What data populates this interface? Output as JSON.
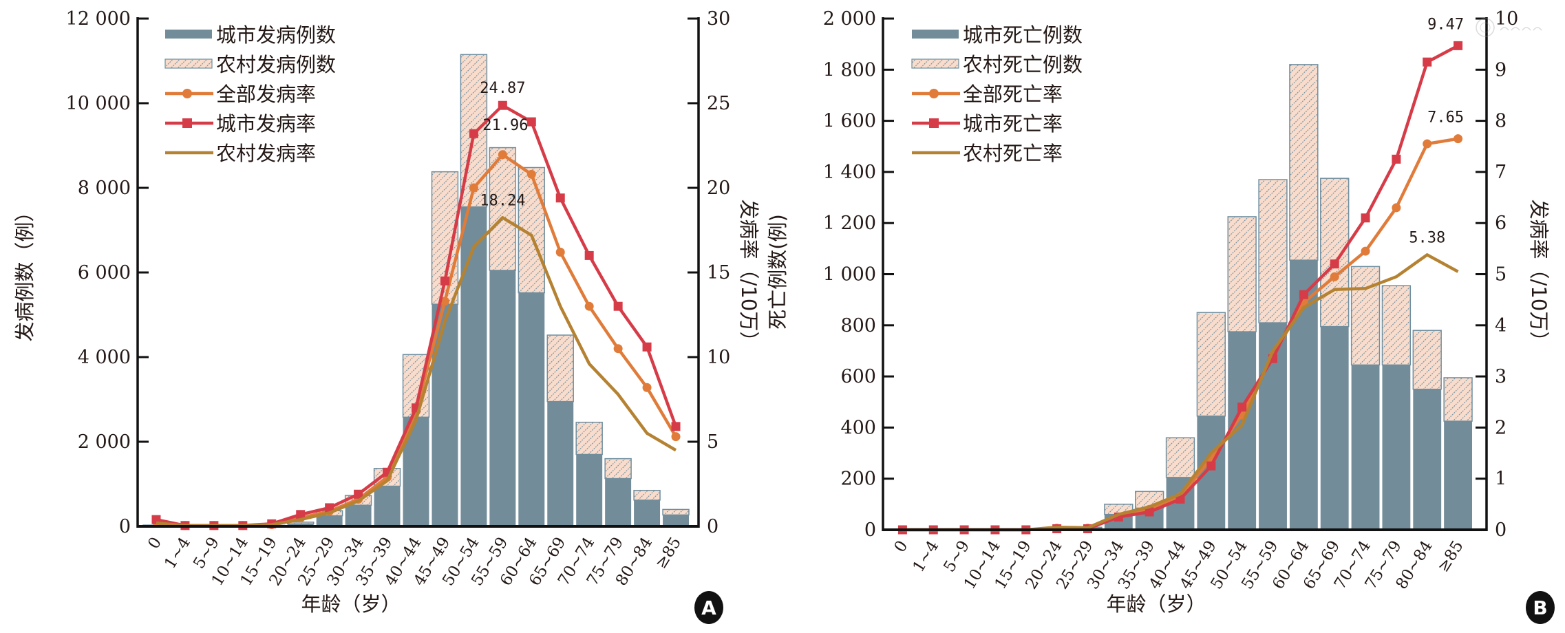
{
  "colors": {
    "urban_bar": "#728c99",
    "rural_bar_fill": "#f9dccb",
    "rural_bar_hatch": "#6f8fa0",
    "overall_line": "#e07b39",
    "urban_line": "#d63c48",
    "rural_line": "#b58232",
    "axis": "#111111",
    "text": "#231815"
  },
  "chart_data": [
    {
      "panel": "A",
      "type": "bar+line",
      "xlabel": "年龄（岁）",
      "ylabel_left": "发病例数（例）",
      "ylabel_right": "发病率（/10万）",
      "ylim_left": [
        0,
        12000
      ],
      "ylim_right": [
        0,
        30
      ],
      "yticks_left": [
        "0",
        "2 000",
        "4 000",
        "6 000",
        "8 000",
        "10 000",
        "12 000"
      ],
      "yticks_left_values": [
        0,
        2000,
        4000,
        6000,
        8000,
        10000,
        12000
      ],
      "yticks_right": [
        "0",
        "5",
        "10",
        "15",
        "20",
        "25",
        "30"
      ],
      "yticks_right_values": [
        0,
        5,
        10,
        15,
        20,
        25,
        30
      ],
      "categories": [
        "0",
        "1~4",
        "5~9",
        "10~14",
        "15~19",
        "20~24",
        "25~29",
        "30~34",
        "35~39",
        "40~44",
        "45~49",
        "50~54",
        "55~59",
        "60~64",
        "65~69",
        "70~74",
        "75~79",
        "80~84",
        "≥85"
      ],
      "legend": [
        "城市发病例数",
        "农村发病例数",
        "全部发病率",
        "城市发病率",
        "农村发病率"
      ],
      "legend_position": "top-left",
      "bar_series": [
        {
          "name": "城市发病例数",
          "values": [
            20,
            5,
            5,
            5,
            15,
            60,
            250,
            500,
            950,
            2580,
            5250,
            7550,
            6050,
            5520,
            2950,
            1700,
            1130,
            620,
            270
          ]
        },
        {
          "name": "农村发病例数",
          "values": [
            10,
            5,
            5,
            5,
            10,
            40,
            120,
            230,
            420,
            1480,
            3130,
            3600,
            2900,
            2960,
            1570,
            760,
            470,
            230,
            130
          ]
        }
      ],
      "line_series": [
        {
          "name": "全部发病率",
          "marker": "circle",
          "values": [
            0.3,
            0.05,
            0.05,
            0.05,
            0.1,
            0.5,
            0.9,
            1.6,
            2.9,
            6.8,
            13.3,
            20.0,
            21.96,
            20.8,
            16.2,
            13.0,
            10.5,
            8.2,
            5.3
          ]
        },
        {
          "name": "城市发病率",
          "marker": "square",
          "values": [
            0.4,
            0.05,
            0.05,
            0.05,
            0.15,
            0.7,
            1.1,
            1.9,
            3.2,
            7.0,
            14.5,
            23.2,
            24.87,
            23.9,
            19.4,
            16.0,
            13.0,
            10.6,
            5.9
          ]
        },
        {
          "name": "农村发病率",
          "marker": "none",
          "values": [
            0.2,
            0.05,
            0.05,
            0.05,
            0.1,
            0.4,
            0.8,
            1.5,
            2.7,
            6.3,
            12.1,
            16.5,
            18.24,
            17.2,
            13.0,
            9.6,
            7.8,
            5.5,
            4.5
          ]
        }
      ],
      "annotations": [
        {
          "text": "24.87",
          "series": "城市发病率",
          "category": "55~59"
        },
        {
          "text": "21.96",
          "series": "全部发病率",
          "category": "55~59"
        },
        {
          "text": "18.24",
          "series": "农村发病率",
          "category": "55~59"
        }
      ],
      "badge": "A"
    },
    {
      "panel": "B",
      "type": "bar+line",
      "xlabel": "年龄（岁）",
      "ylabel_left": "死亡例数(例)",
      "ylabel_right": "发病率（/10万）",
      "ylim_left": [
        0,
        2000
      ],
      "ylim_right": [
        0,
        10
      ],
      "yticks_left": [
        "0",
        "200",
        "400",
        "600",
        "800",
        "1 000",
        "1 200",
        "1 400",
        "1 600",
        "1 800",
        "2 000"
      ],
      "yticks_left_values": [
        0,
        200,
        400,
        600,
        800,
        1000,
        1200,
        1400,
        1600,
        1800,
        2000
      ],
      "yticks_right": [
        "0",
        "1",
        "2",
        "3",
        "4",
        "5",
        "6",
        "7",
        "8",
        "9",
        "10"
      ],
      "yticks_right_values": [
        0,
        1,
        2,
        3,
        4,
        5,
        6,
        7,
        8,
        9,
        10
      ],
      "categories": [
        "0",
        "1~4",
        "5~9",
        "10~14",
        "15~19",
        "20~24",
        "25~29",
        "30~34",
        "35~39",
        "40~44",
        "45~49",
        "50~54",
        "55~59",
        "60~64",
        "65~69",
        "70~74",
        "75~79",
        "80~84",
        "≥85"
      ],
      "legend": [
        "城市死亡例数",
        "农村死亡例数",
        "全部死亡率",
        "城市死亡率",
        "农村死亡率"
      ],
      "legend_position": "top-left",
      "bar_series": [
        {
          "name": "城市死亡例数",
          "values": [
            0,
            0,
            0,
            0,
            0,
            5,
            7,
            60,
            85,
            205,
            445,
            775,
            810,
            1055,
            795,
            645,
            645,
            550,
            425
          ]
        },
        {
          "name": "农村死亡例数",
          "values": [
            0,
            0,
            0,
            0,
            0,
            3,
            3,
            40,
            65,
            155,
            405,
            450,
            560,
            765,
            580,
            385,
            310,
            230,
            170
          ]
        }
      ],
      "line_series": [
        {
          "name": "全部死亡率",
          "marker": "circle",
          "values": [
            0,
            0,
            0,
            0,
            0,
            0.03,
            0.03,
            0.25,
            0.4,
            0.65,
            1.4,
            2.25,
            3.4,
            4.45,
            4.95,
            5.45,
            6.3,
            7.55,
            7.65
          ]
        },
        {
          "name": "城市死亡率",
          "marker": "square",
          "values": [
            0,
            0,
            0,
            0,
            0,
            0.02,
            0.02,
            0.25,
            0.35,
            0.6,
            1.25,
            2.4,
            3.35,
            4.6,
            5.2,
            6.1,
            7.25,
            9.15,
            9.47
          ]
        },
        {
          "name": "农村死亡率",
          "marker": "none",
          "values": [
            0,
            0,
            0,
            0,
            0,
            0.05,
            0.04,
            0.3,
            0.45,
            0.7,
            1.5,
            2.05,
            3.5,
            4.35,
            4.7,
            4.72,
            4.95,
            5.38,
            5.05
          ]
        }
      ],
      "annotations": [
        {
          "text": "9.47",
          "series": "城市死亡率",
          "category": "≥85"
        },
        {
          "text": "7.65",
          "series": "全部死亡率",
          "category": "≥85"
        },
        {
          "text": "5.38",
          "series": "农村死亡率",
          "category": "80~84"
        }
      ],
      "badge": "B"
    }
  ]
}
